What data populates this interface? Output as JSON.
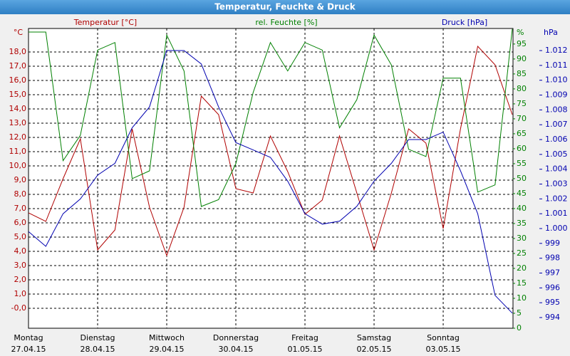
{
  "chart_data": {
    "type": "line",
    "title": "Temperatur, Feuchte & Druck",
    "x": [
      0,
      0.25,
      0.5,
      0.75,
      1,
      1.25,
      1.5,
      1.75,
      2,
      2.25,
      2.5,
      2.75,
      3,
      3.25,
      3.5,
      3.75,
      4,
      4.25,
      4.5,
      4.75,
      5,
      5.25,
      5.5,
      5.75,
      6,
      6.25,
      6.5,
      6.75,
      7
    ],
    "xlim": [
      0,
      7.01
    ],
    "xticks": [
      {
        "value": 0,
        "label": "Montag",
        "date": "27.04.15"
      },
      {
        "value": 1,
        "label": "Dienstag",
        "date": "28.04.15"
      },
      {
        "value": 2,
        "label": "Mittwoch",
        "date": "29.04.15"
      },
      {
        "value": 3,
        "label": "Donnerstag",
        "date": "30.04.15"
      },
      {
        "value": 4,
        "label": "Freitag",
        "date": "01.05.15"
      },
      {
        "value": 5,
        "label": "Samstag",
        "date": "02.05.15"
      },
      {
        "value": 6,
        "label": "Sonntag",
        "date": "03.05.15"
      }
    ],
    "y_unit": "°C",
    "y2_unit": "%",
    "y3_unit": "hPa",
    "ylim": [
      -1.4,
      19.65
    ],
    "yticks": [
      {
        "value": 0,
        "label": "-0,0"
      },
      {
        "value": 1,
        "label": "1,0"
      },
      {
        "value": 2,
        "label": "2,0"
      },
      {
        "value": 3,
        "label": "3,0"
      },
      {
        "value": 4,
        "label": "4,0"
      },
      {
        "value": 5,
        "label": "5,0"
      },
      {
        "value": 6,
        "label": "6,0"
      },
      {
        "value": 7,
        "label": "7,0"
      },
      {
        "value": 8,
        "label": "8,0"
      },
      {
        "value": 9,
        "label": "9,0"
      },
      {
        "value": 10,
        "label": "10,0"
      },
      {
        "value": 11,
        "label": "11,0"
      },
      {
        "value": 12,
        "label": "12,0"
      },
      {
        "value": 13,
        "label": "13,0"
      },
      {
        "value": 14,
        "label": "14,0"
      },
      {
        "value": 15,
        "label": "15,0"
      },
      {
        "value": 16,
        "label": "16,0"
      },
      {
        "value": 17,
        "label": "17,0"
      },
      {
        "value": 18,
        "label": "18,0"
      }
    ],
    "y2lim": [
      0,
      100.2
    ],
    "y2ticks": [
      0,
      5,
      10,
      15,
      20,
      25,
      30,
      35,
      40,
      45,
      50,
      55,
      60,
      65,
      70,
      75,
      80,
      85,
      90,
      95
    ],
    "y3lim": [
      993.28,
      1013.49
    ],
    "y3ticks": [
      994,
      995,
      996,
      997,
      998,
      999,
      {
        "value": 1000,
        "label": "1.000"
      },
      {
        "value": 1001,
        "label": "1.001"
      },
      {
        "value": 1002,
        "label": "1.002"
      },
      {
        "value": 1003,
        "label": "1.003"
      },
      {
        "value": 1004,
        "label": "1.004"
      },
      {
        "value": 1005,
        "label": "1.005"
      },
      {
        "value": 1006,
        "label": "1.006"
      },
      {
        "value": 1007,
        "label": "1.007"
      },
      {
        "value": 1008,
        "label": "1.008"
      },
      {
        "value": 1009,
        "label": "1.009"
      },
      {
        "value": 1010,
        "label": "1.010"
      },
      {
        "value": 1011,
        "label": "1.011"
      },
      {
        "value": 1012,
        "label": "1.012"
      }
    ],
    "grid": true,
    "series": [
      {
        "name": "Temperatur [°C]",
        "color": "#b00000",
        "axis": "y",
        "values": [
          6.7,
          6.1,
          9.1,
          11.9,
          4.1,
          5.5,
          12.6,
          7.1,
          3.7,
          7.1,
          14.9,
          13.6,
          8.4,
          8.1,
          12.1,
          9.6,
          6.6,
          7.6,
          12.1,
          8.1,
          4.1,
          8.1,
          12.6,
          11.6,
          5.6,
          12.6,
          18.4,
          17.1,
          13.6
        ]
      },
      {
        "name": "rel. Feuchte [%]",
        "color": "#008000",
        "axis": "y2",
        "values": [
          99,
          99,
          56,
          64.5,
          93,
          95.5,
          50,
          52.6,
          98,
          86,
          40.7,
          43,
          55,
          78.8,
          95.5,
          86,
          95.5,
          93,
          67,
          76.4,
          98,
          88,
          59.8,
          57.4,
          83.6,
          83.6,
          45.5,
          47.9,
          100
        ]
      },
      {
        "name": "Druck [hPa]",
        "color": "#0000b0",
        "axis": "y3",
        "values": [
          999.8,
          998.8,
          1001.0,
          1002.0,
          1003.6,
          1004.4,
          1006.8,
          1008.2,
          1012.0,
          1012.0,
          1011.1,
          1008.2,
          1005.8,
          1005.3,
          1004.8,
          1003.2,
          1001.0,
          1000.3,
          1000.5,
          1001.5,
          1003.2,
          1004.4,
          1006.0,
          1006.0,
          1006.5,
          1003.9,
          1001.0,
          995.5,
          994.3
        ]
      }
    ]
  }
}
